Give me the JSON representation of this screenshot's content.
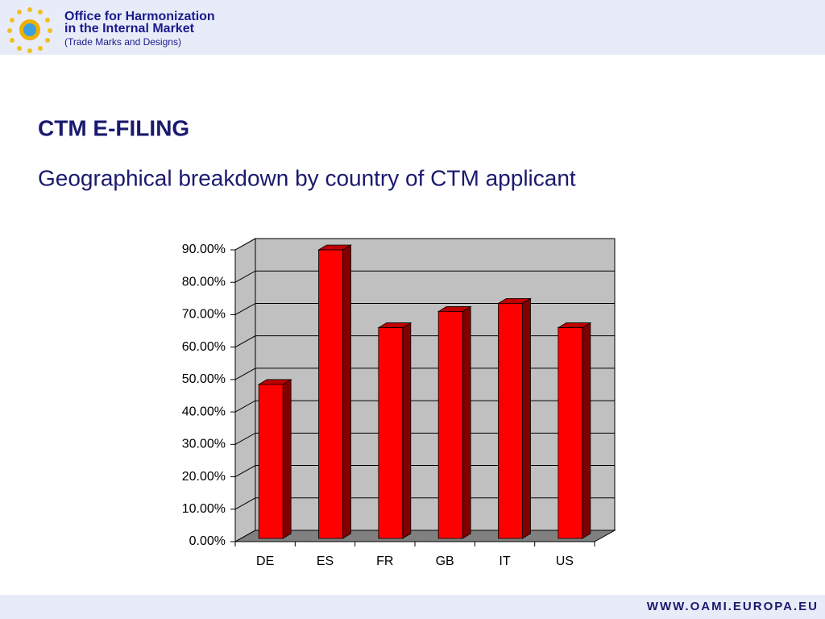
{
  "header": {
    "org_line1": "Office for Harmonization",
    "org_line2": "in the Internal Market",
    "org_line3": "(Trade Marks and Designs)"
  },
  "footer": {
    "url": "WWW.OAMI.EUROPA.EU"
  },
  "chart_data": {
    "type": "bar3d",
    "title": "CTM E-FILING",
    "subtitle": "Geographical breakdown by country of CTM applicant",
    "categories": [
      "DE",
      "ES",
      "FR",
      "GB",
      "IT",
      "US"
    ],
    "values": [
      47.5,
      89,
      65,
      70,
      72.5,
      65
    ],
    "color": "#ff0000",
    "ylim": [
      0,
      90
    ],
    "yticks": [
      {
        "value": 0,
        "label": "0.00%"
      },
      {
        "value": 10,
        "label": "10.00%"
      },
      {
        "value": 20,
        "label": "20.00%"
      },
      {
        "value": 30,
        "label": "30.00%"
      },
      {
        "value": 40,
        "label": "40.00%"
      },
      {
        "value": 50,
        "label": "50.00%"
      },
      {
        "value": 60,
        "label": "60.00%"
      },
      {
        "value": 70,
        "label": "70.00%"
      },
      {
        "value": 80,
        "label": "80.00%"
      },
      {
        "value": 90,
        "label": "90.00%"
      }
    ],
    "grid": true
  }
}
